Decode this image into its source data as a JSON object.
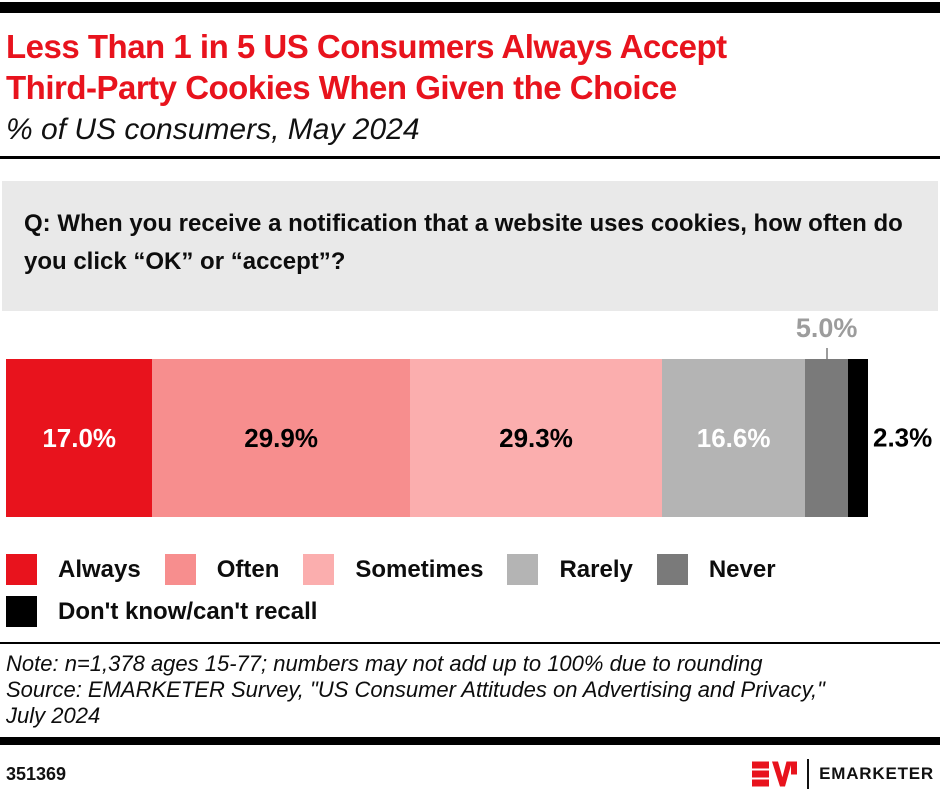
{
  "header": {
    "title_line1": "Less Than 1 in 5 US Consumers Always Accept",
    "title_line2": "Third-Party Cookies When Given the Choice",
    "subtitle": "% of US consumers, May 2024"
  },
  "question": "Q: When you receive a notification that a website uses cookies, how often do you click “OK” or “accept”?",
  "chart_data": {
    "type": "bar",
    "subtype": "horizontal-stacked",
    "title": "Less Than 1 in 5 US Consumers Always Accept Third-Party Cookies When Given the Choice",
    "unit": "% of US consumers",
    "categories": [
      "Always",
      "Often",
      "Sometimes",
      "Rarely",
      "Never",
      "Don't know/can't recall"
    ],
    "values": [
      17.0,
      29.9,
      29.3,
      16.6,
      5.0,
      2.3
    ],
    "labels": [
      "17.0%",
      "29.9%",
      "29.3%",
      "16.6%",
      "5.0%",
      "2.3%"
    ],
    "colors": [
      "#e8131d",
      "#f78e8e",
      "#fbaeae",
      "#b4b4b4",
      "#7a7a7a",
      "#000000"
    ],
    "label_colors": [
      "#ffffff",
      "#000000",
      "#000000",
      "#ffffff",
      "#9c9c9c",
      "#000000"
    ],
    "label_placement": [
      "inside",
      "inside",
      "inside",
      "inside",
      "above",
      "right"
    ],
    "xlim": [
      0,
      100
    ],
    "grid": false,
    "legend_position": "bottom"
  },
  "legend": {
    "rows": [
      {
        "items": [
          {
            "label": "Always",
            "color": "#e8131d"
          },
          {
            "label": "Often",
            "color": "#f78e8e"
          },
          {
            "label": "Sometimes",
            "color": "#fbaeae"
          },
          {
            "label": "Rarely",
            "color": "#b4b4b4"
          },
          {
            "label": "Never",
            "color": "#7a7a7a"
          }
        ]
      },
      {
        "items": [
          {
            "label": "Don't know/can't recall",
            "color": "#000000"
          }
        ]
      }
    ]
  },
  "notes": {
    "lines": [
      "Note: n=1,378 ages 15-77; numbers may not add up to 100% due to rounding",
      "Source: EMARKETER Survey, \"US Consumer Attitudes on Advertising and Privacy,\"",
      "July 2024"
    ]
  },
  "footer": {
    "chart_id": "351369",
    "brand_name": "EMARKETER",
    "brand_red": "#e8131d"
  }
}
